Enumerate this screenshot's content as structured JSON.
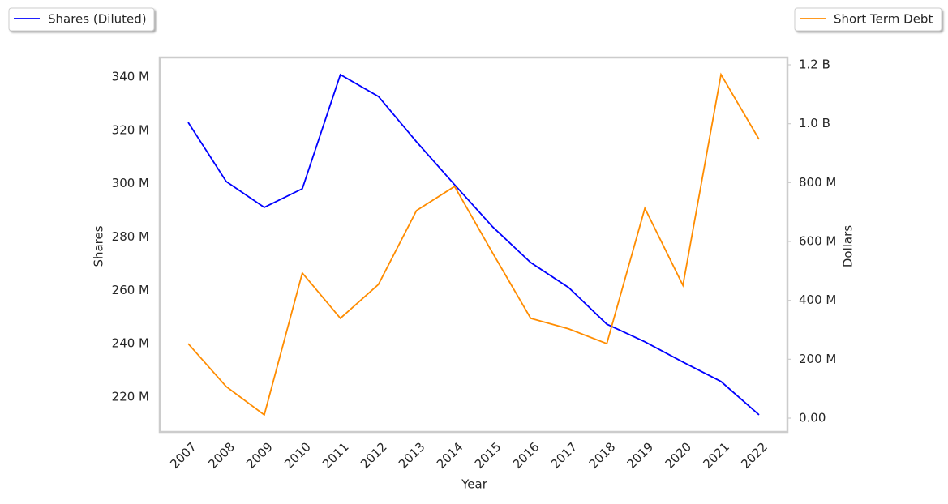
{
  "chart_data": {
    "type": "line",
    "x_label": "Year",
    "y_label": "Shares",
    "y2_label": "Dollars",
    "categories": [
      "2007",
      "2008",
      "2009",
      "2010",
      "2011",
      "2012",
      "2013",
      "2014",
      "2015",
      "2016",
      "2017",
      "2018",
      "2019",
      "2020",
      "2021",
      "2022"
    ],
    "series": [
      {
        "name": "Shares (Diluted)",
        "color": "#0000ff",
        "axis": "y",
        "values": [
          323000000,
          300800000,
          291100000,
          298100000,
          340900000,
          332700000,
          315700000,
          299600000,
          283800000,
          270400000,
          261000000,
          247300000,
          240700000,
          233100000,
          225800000,
          213300000
        ]
      },
      {
        "name": "Short Term Debt",
        "color": "#ff8c00",
        "axis": "y2",
        "values": [
          253000000,
          107000000,
          11000000,
          493000000,
          339000000,
          454000000,
          705000000,
          787000000,
          561000000,
          339000000,
          303000000,
          253000000,
          713000000,
          451000000,
          1167000000,
          947000000
        ]
      }
    ],
    "ylim": [
      206900000,
      347300000
    ],
    "yticks": [
      {
        "value": 220000000,
        "label": "220 M"
      },
      {
        "value": 240000000,
        "label": "240 M"
      },
      {
        "value": 260000000,
        "label": "260 M"
      },
      {
        "value": 280000000,
        "label": "280 M"
      },
      {
        "value": 300000000,
        "label": "300 M"
      },
      {
        "value": 320000000,
        "label": "320 M"
      },
      {
        "value": 340000000,
        "label": "340 M"
      }
    ],
    "y2lim": [
      -46800000,
      1224800000
    ],
    "y2ticks": [
      {
        "value": 0,
        "label": "0.00"
      },
      {
        "value": 200000000,
        "label": "200 M"
      },
      {
        "value": 400000000,
        "label": "400 M"
      },
      {
        "value": 600000000,
        "label": "600 M"
      },
      {
        "value": 800000000,
        "label": "800 M"
      },
      {
        "value": 1000000000,
        "label": "1.0 B"
      },
      {
        "value": 1200000000,
        "label": "1.2 B"
      }
    ],
    "grid": false
  }
}
